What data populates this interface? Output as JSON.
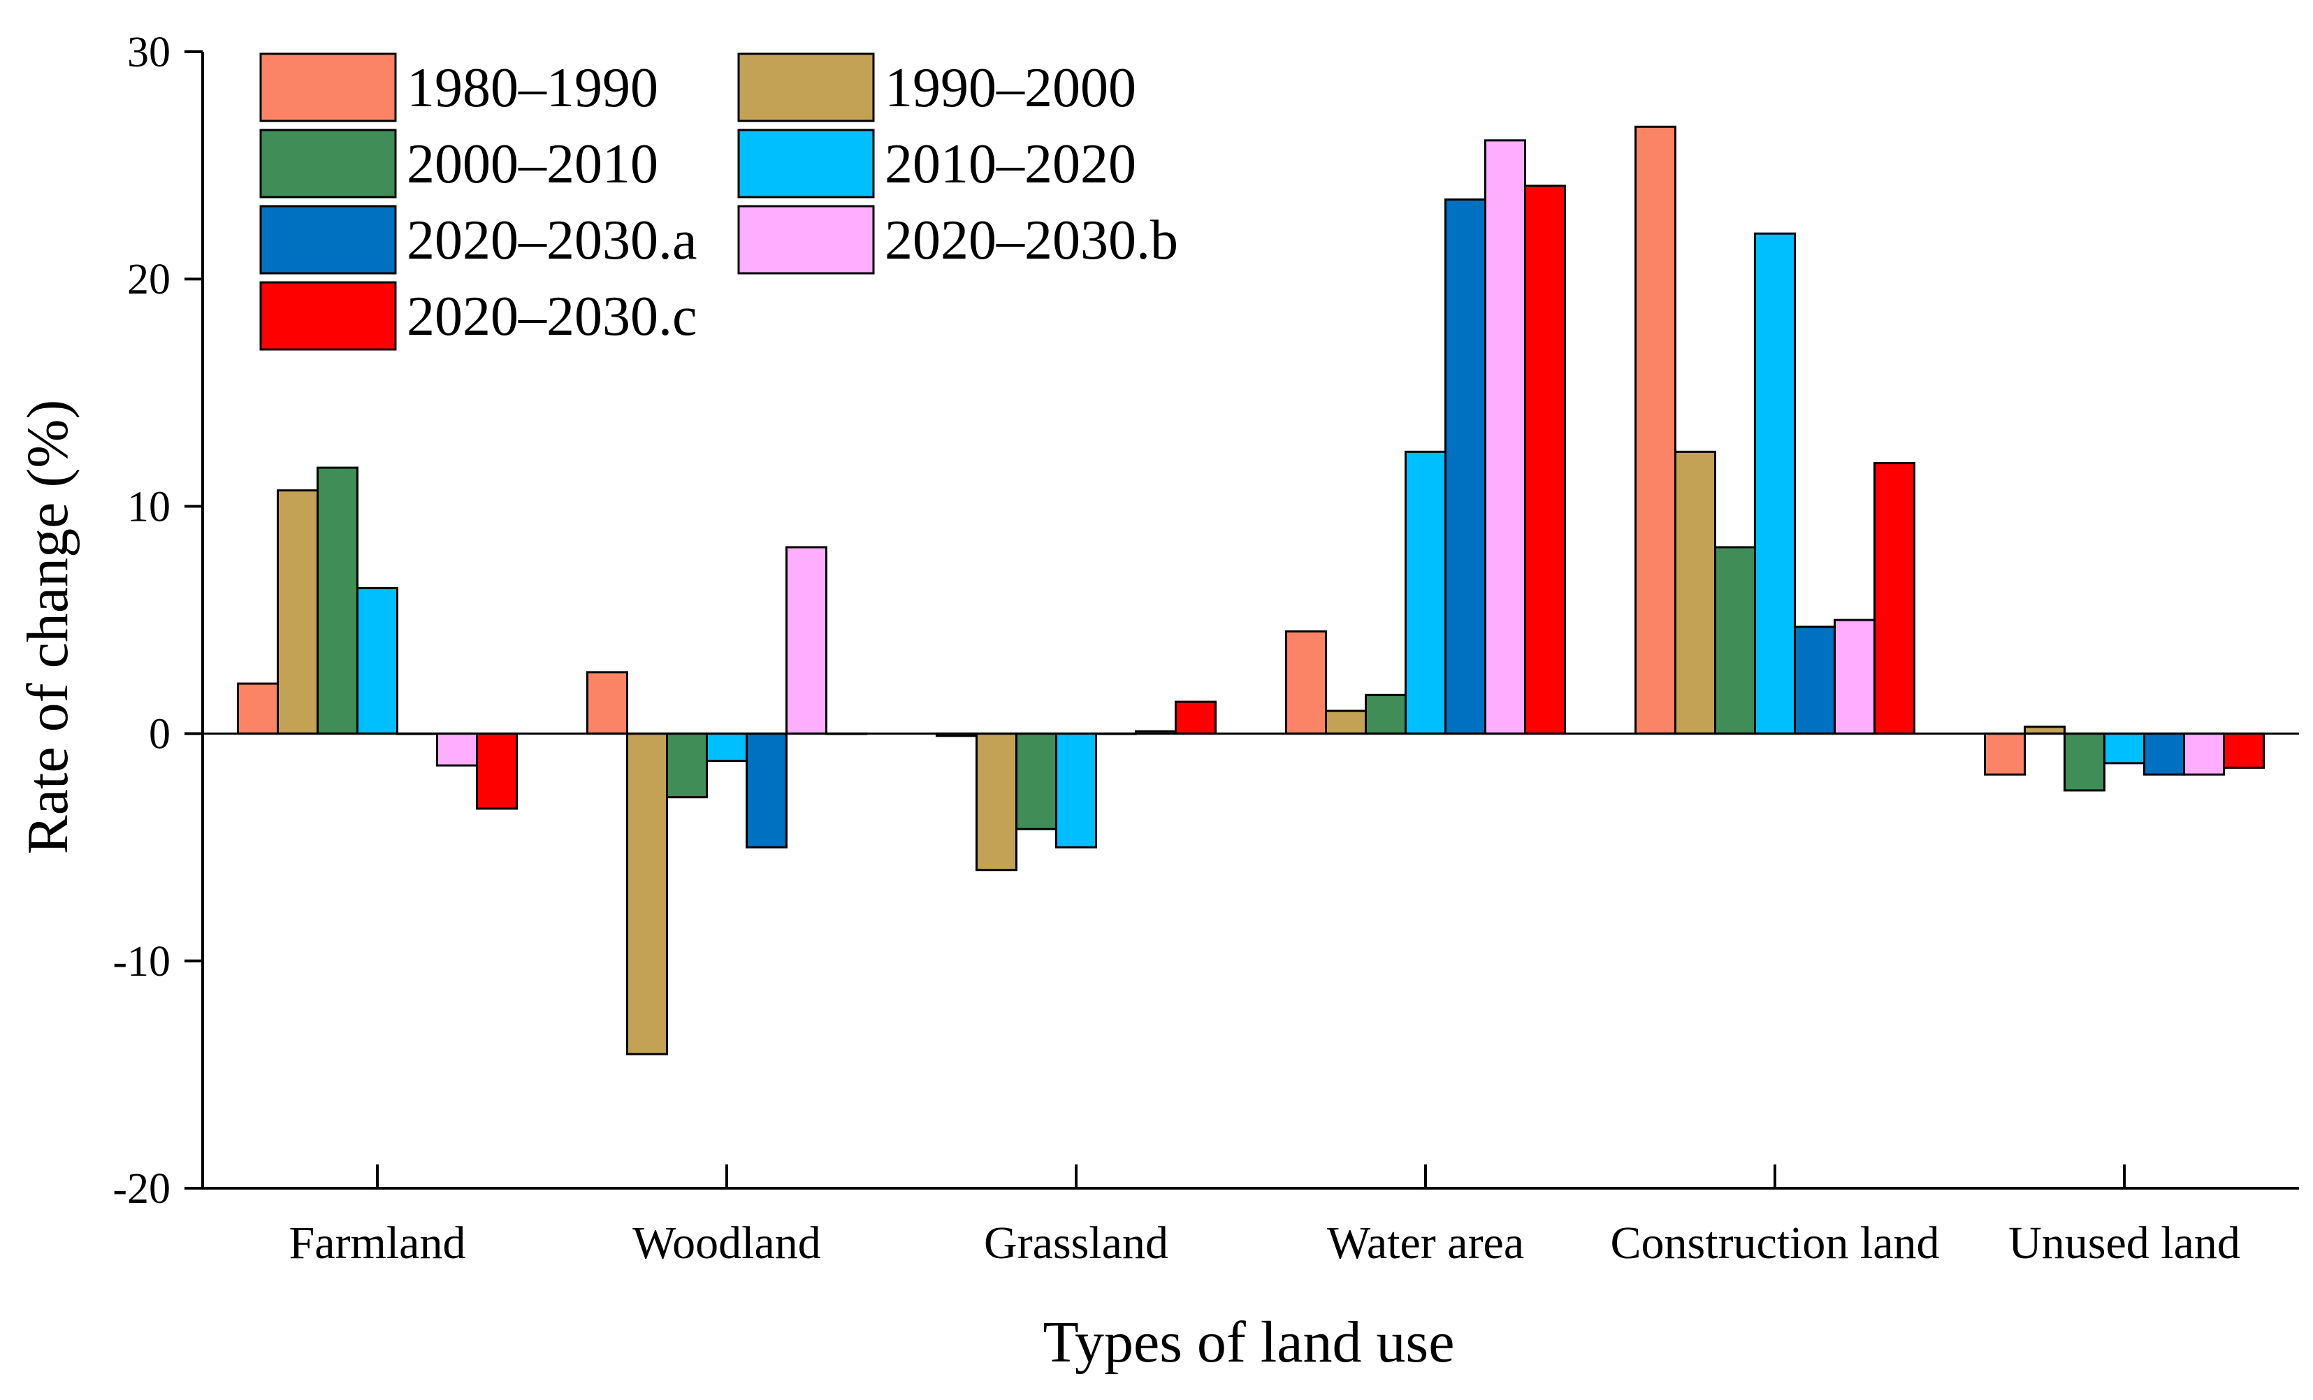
{
  "chart_data": {
    "type": "bar",
    "title": "",
    "xlabel": "Types of land use",
    "ylabel": "Rate of change (%)",
    "ylim": [
      -20,
      30
    ],
    "yticks": [
      -20,
      -10,
      0,
      10,
      20,
      30
    ],
    "grid": false,
    "legend_position": "top-left",
    "categories": [
      "Farmland",
      "Woodland",
      "Grassland",
      "Water area",
      "Construction land",
      "Unused land"
    ],
    "series": [
      {
        "name": "1980–1990",
        "color": "#FA8465",
        "values": [
          2.2,
          2.7,
          -0.1,
          4.5,
          26.7,
          -1.8
        ]
      },
      {
        "name": "1990–2000",
        "color": "#C3A256",
        "values": [
          10.7,
          -14.1,
          -6.0,
          1.0,
          12.4,
          0.3
        ]
      },
      {
        "name": "2000–2010",
        "color": "#408D58",
        "values": [
          11.7,
          -2.8,
          -4.2,
          1.7,
          8.2,
          -2.5
        ]
      },
      {
        "name": "2010–2020",
        "color": "#00BFFF",
        "values": [
          6.4,
          -1.2,
          -5.0,
          12.4,
          22.0,
          -1.3
        ]
      },
      {
        "name": "2020–2030.a",
        "color": "#0070C0",
        "values": [
          0.0,
          -5.0,
          0.0,
          23.5,
          4.7,
          -1.8
        ]
      },
      {
        "name": "2020–2030.b",
        "color": "#FFADFF",
        "values": [
          -1.4,
          8.2,
          0.1,
          26.1,
          5.0,
          -1.8
        ]
      },
      {
        "name": "2020–2030.c",
        "color": "#FF0000",
        "values": [
          -3.3,
          0.0,
          1.4,
          24.1,
          11.9,
          -1.5
        ]
      }
    ]
  }
}
